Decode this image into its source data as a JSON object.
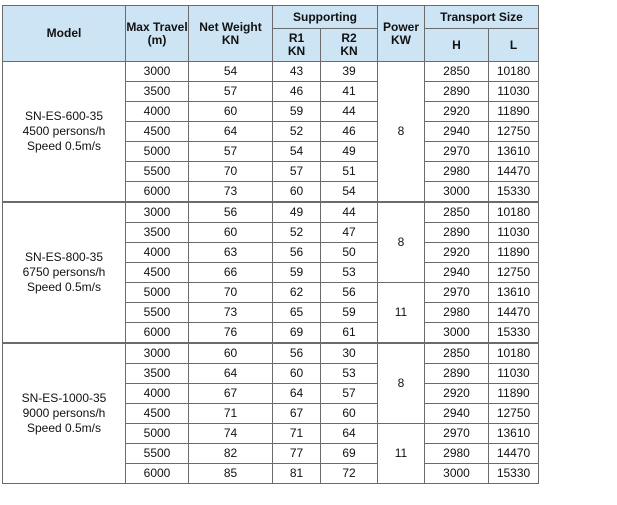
{
  "headers": {
    "model": "Model",
    "max_travel": [
      "Max Travel",
      "(m)"
    ],
    "net_weight": [
      "Net Weight",
      "KN"
    ],
    "supporting": "Supporting",
    "r1": [
      "R1",
      "KN"
    ],
    "r2": [
      "R2",
      "KN"
    ],
    "power": [
      "Power",
      "KW"
    ],
    "transport_size": "Transport Size",
    "h": "H",
    "l": "L"
  },
  "groups": [
    {
      "model_lines": [
        "SN-ES-600-35",
        "4500 persons/h",
        "Speed 0.5m/s"
      ],
      "power_blocks": [
        {
          "value": "8",
          "rows": 7
        }
      ],
      "rows": [
        {
          "travel": "3000",
          "weight": "54",
          "r1": "43",
          "r2": "39",
          "h": "2850",
          "l": "10180"
        },
        {
          "travel": "3500",
          "weight": "57",
          "r1": "46",
          "r2": "41",
          "h": "2890",
          "l": "11030"
        },
        {
          "travel": "4000",
          "weight": "60",
          "r1": "59",
          "r2": "44",
          "h": "2920",
          "l": "11890"
        },
        {
          "travel": "4500",
          "weight": "64",
          "r1": "52",
          "r2": "46",
          "h": "2940",
          "l": "12750"
        },
        {
          "travel": "5000",
          "weight": "57",
          "r1": "54",
          "r2": "49",
          "h": "2970",
          "l": "13610"
        },
        {
          "travel": "5500",
          "weight": "70",
          "r1": "57",
          "r2": "51",
          "h": "2980",
          "l": "14470"
        },
        {
          "travel": "6000",
          "weight": "73",
          "r1": "60",
          "r2": "54",
          "h": "3000",
          "l": "15330"
        }
      ]
    },
    {
      "model_lines": [
        "SN-ES-800-35",
        "6750 persons/h",
        "Speed 0.5m/s"
      ],
      "power_blocks": [
        {
          "value": "8",
          "rows": 4
        },
        {
          "value": "11",
          "rows": 3
        }
      ],
      "rows": [
        {
          "travel": "3000",
          "weight": "56",
          "r1": "49",
          "r2": "44",
          "h": "2850",
          "l": "10180"
        },
        {
          "travel": "3500",
          "weight": "60",
          "r1": "52",
          "r2": "47",
          "h": "2890",
          "l": "11030"
        },
        {
          "travel": "4000",
          "weight": "63",
          "r1": "56",
          "r2": "50",
          "h": "2920",
          "l": "11890"
        },
        {
          "travel": "4500",
          "weight": "66",
          "r1": "59",
          "r2": "53",
          "h": "2940",
          "l": "12750"
        },
        {
          "travel": "5000",
          "weight": "70",
          "r1": "62",
          "r2": "56",
          "h": "2970",
          "l": "13610"
        },
        {
          "travel": "5500",
          "weight": "73",
          "r1": "65",
          "r2": "59",
          "h": "2980",
          "l": "14470"
        },
        {
          "travel": "6000",
          "weight": "76",
          "r1": "69",
          "r2": "61",
          "h": "3000",
          "l": "15330"
        }
      ]
    },
    {
      "model_lines": [
        "SN-ES-1000-35",
        "9000 persons/h",
        "Speed 0.5m/s"
      ],
      "power_blocks": [
        {
          "value": "8",
          "rows": 4
        },
        {
          "value": "11",
          "rows": 3
        }
      ],
      "rows": [
        {
          "travel": "3000",
          "weight": "60",
          "r1": "56",
          "r2": "30",
          "h": "2850",
          "l": "10180"
        },
        {
          "travel": "3500",
          "weight": "64",
          "r1": "60",
          "r2": "53",
          "h": "2890",
          "l": "11030"
        },
        {
          "travel": "4000",
          "weight": "67",
          "r1": "64",
          "r2": "57",
          "h": "2920",
          "l": "11890"
        },
        {
          "travel": "4500",
          "weight": "71",
          "r1": "67",
          "r2": "60",
          "h": "2940",
          "l": "12750"
        },
        {
          "travel": "5000",
          "weight": "74",
          "r1": "71",
          "r2": "64",
          "h": "2970",
          "l": "13610"
        },
        {
          "travel": "5500",
          "weight": "82",
          "r1": "77",
          "r2": "69",
          "h": "2980",
          "l": "14470"
        },
        {
          "travel": "6000",
          "weight": "85",
          "r1": "81",
          "r2": "72",
          "h": "3000",
          "l": "15330"
        }
      ]
    }
  ]
}
